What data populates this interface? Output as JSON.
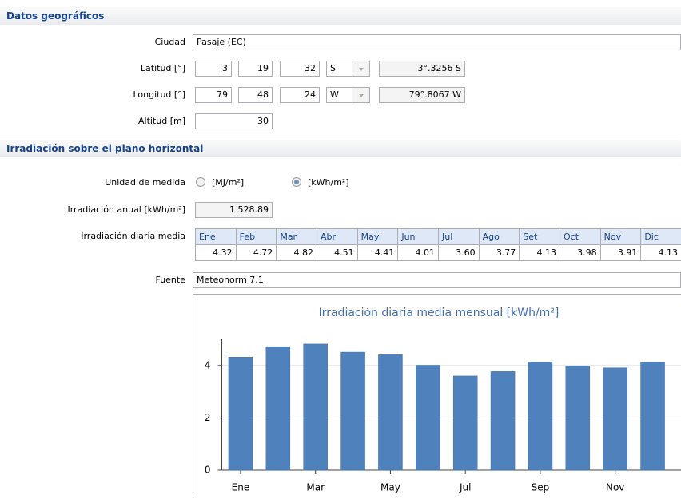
{
  "sections": [
    {
      "title": "Datos geográficos"
    },
    {
      "title": "Irradiación sobre el plano horizontal"
    }
  ],
  "geo": {
    "ciudad": {
      "label": "Ciudad",
      "value": "Pasaje (EC)"
    },
    "latitud": {
      "label": "Latitud [°]",
      "deg": "3",
      "min": "19",
      "sec": "32",
      "hemi": "S",
      "decimal": "3°.3256 S"
    },
    "longitud": {
      "label": "Longitud [°]",
      "deg": "79",
      "min": "48",
      "sec": "24",
      "hemi": "W",
      "decimal": "79°.8067 W"
    },
    "altitud": {
      "label": "Altitud [m]",
      "value": "30"
    }
  },
  "irradiacion": {
    "unidad": {
      "label": "Unidad de medida",
      "options": [
        "[MJ/m²]",
        "[kWh/m²]"
      ],
      "selected": 1
    },
    "anual": {
      "label": "Irradiación anual [kWh/m²]",
      "value": "1 528.89"
    },
    "diaria": {
      "label": "Irradiación diaria media",
      "months": [
        "Ene",
        "Feb",
        "Mar",
        "Abr",
        "May",
        "Jun",
        "Jul",
        "Ago",
        "Set",
        "Oct",
        "Nov",
        "Dic"
      ],
      "values": [
        "4.32",
        "4.72",
        "4.82",
        "4.51",
        "4.41",
        "4.01",
        "3.60",
        "3.77",
        "4.13",
        "3.98",
        "3.91",
        "4.13"
      ]
    },
    "fuente": {
      "label": "Fuente",
      "value": "Meteonorm 7.1"
    }
  },
  "chart_data": {
    "type": "bar",
    "title": "Irradiación diaria media mensual [kWh/m²]",
    "categories": [
      "Ene",
      null,
      "Mar",
      null,
      "May",
      null,
      "Jul",
      null,
      "Sep",
      null,
      "Nov",
      null
    ],
    "values": [
      4.32,
      4.72,
      4.82,
      4.51,
      4.41,
      4.01,
      3.6,
      3.77,
      4.13,
      3.98,
      3.91,
      4.13
    ],
    "color": "#4f81bd",
    "ylim": [
      0,
      5
    ],
    "yticks": [
      0,
      2,
      4
    ],
    "grid": true
  }
}
